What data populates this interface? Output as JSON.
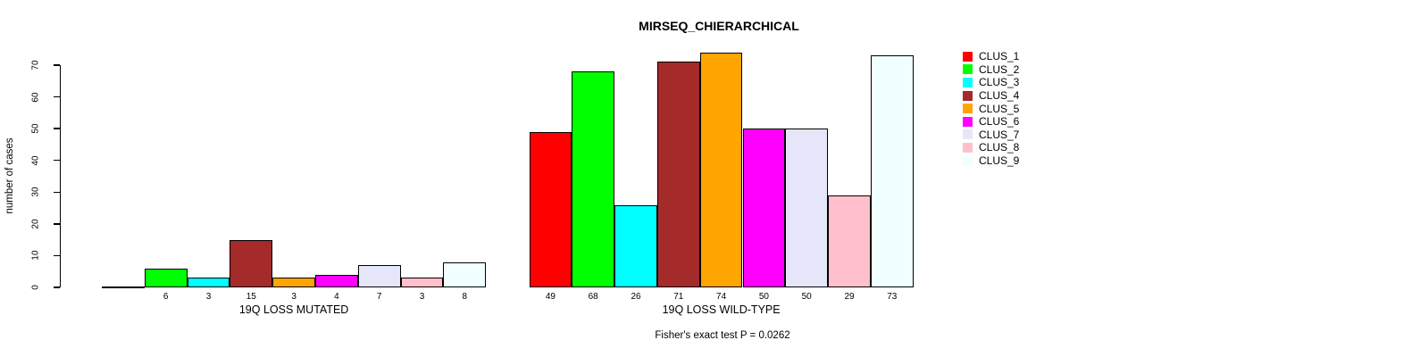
{
  "chart_data": {
    "type": "bar",
    "title": "MIRSEQ_CHIERARCHICAL",
    "ylabel": "number of cases",
    "ylim": [
      0,
      70
    ],
    "yticks": [
      0,
      10,
      20,
      30,
      40,
      50,
      60,
      70
    ],
    "grid": false,
    "legend_position": "right",
    "legend": [
      {
        "label": "CLUS_1",
        "color": "#FF0000"
      },
      {
        "label": "CLUS_2",
        "color": "#00FF00"
      },
      {
        "label": "CLUS_3",
        "color": "#00FFFF"
      },
      {
        "label": "CLUS_4",
        "color": "#A52A2A"
      },
      {
        "label": "CLUS_5",
        "color": "#FFA500"
      },
      {
        "label": "CLUS_6",
        "color": "#FF00FF"
      },
      {
        "label": "CLUS_7",
        "color": "#E6E6FA"
      },
      {
        "label": "CLUS_8",
        "color": "#FFC0CB"
      },
      {
        "label": "CLUS_9",
        "color": "#F0FFFF"
      }
    ],
    "groups": [
      {
        "label": "19Q LOSS MUTATED",
        "values": [
          0,
          6,
          3,
          15,
          3,
          4,
          7,
          3,
          8
        ],
        "bar_labels": [
          "",
          "6",
          "3",
          "15",
          "3",
          "4",
          "7",
          "3",
          "8"
        ]
      },
      {
        "label": "19Q LOSS WILD-TYPE",
        "values": [
          49,
          68,
          26,
          71,
          74,
          50,
          50,
          29,
          73
        ],
        "bar_labels": [
          "49",
          "68",
          "26",
          "71",
          "74",
          "50",
          "50",
          "29",
          "73"
        ]
      }
    ],
    "footnote": "Fisher's exact test P = 0.0262",
    "colors": {
      "background": "#FFFFFF",
      "axis": "#000000",
      "bar_border": "#000000",
      "text": "#000000"
    }
  }
}
